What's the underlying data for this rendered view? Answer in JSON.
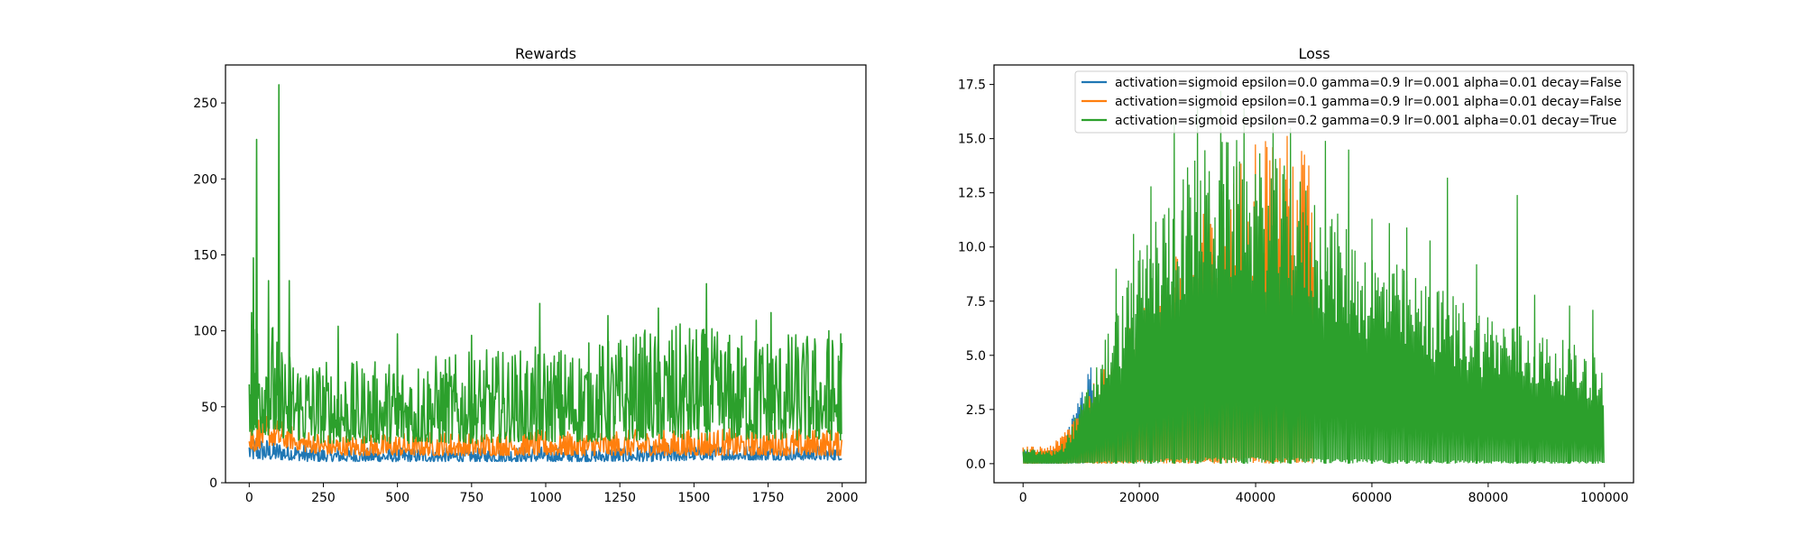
{
  "chart_data": [
    {
      "type": "line",
      "title": "Rewards",
      "xlabel": "",
      "ylabel": "",
      "xlim": [
        -80,
        2080
      ],
      "ylim": [
        0,
        275
      ],
      "xticks": [
        0,
        250,
        500,
        750,
        1000,
        1250,
        1500,
        1750,
        2000
      ],
      "xtick_labels": [
        "0",
        "250",
        "500",
        "750",
        "1000",
        "1250",
        "1500",
        "1750",
        "2000"
      ],
      "yticks": [
        0,
        50,
        100,
        150,
        200,
        250
      ],
      "ytick_labels": [
        "0",
        "50",
        "100",
        "150",
        "200",
        "250"
      ],
      "grid": false,
      "legend": "none",
      "series": [
        {
          "color": "#1f77b4",
          "x": [
            0,
            50,
            100,
            150,
            200,
            250,
            300,
            400,
            500,
            600,
            700,
            800,
            900,
            1000,
            1100,
            1200,
            1300,
            1400,
            1500,
            1600,
            1700,
            1800,
            1900,
            2000
          ],
          "low": [
            15,
            15,
            15,
            15,
            14,
            14,
            14,
            14,
            14,
            14,
            14,
            14,
            14,
            14,
            14,
            14,
            14,
            14,
            15,
            15,
            15,
            15,
            15,
            15
          ],
          "high": [
            32,
            30,
            28,
            27,
            25,
            24,
            24,
            23,
            23,
            23,
            23,
            23,
            24,
            24,
            24,
            24,
            24,
            25,
            25,
            25,
            25,
            25,
            25,
            25
          ]
        },
        {
          "color": "#ff7f0e",
          "x": [
            0,
            50,
            100,
            150,
            200,
            250,
            300,
            400,
            500,
            600,
            700,
            800,
            900,
            1000,
            1100,
            1200,
            1300,
            1400,
            1500,
            1600,
            1700,
            1800,
            1900,
            2000
          ],
          "low": [
            18,
            25,
            24,
            22,
            20,
            19,
            18,
            18,
            18,
            18,
            18,
            18,
            18,
            18,
            18,
            18,
            18,
            18,
            18,
            18,
            18,
            18,
            18,
            18
          ],
          "high": [
            45,
            48,
            42,
            38,
            35,
            33,
            32,
            32,
            33,
            34,
            34,
            34,
            35,
            35,
            35,
            35,
            35,
            35,
            36,
            36,
            36,
            36,
            36,
            36
          ]
        },
        {
          "color": "#2ca02c",
          "x": [
            0,
            50,
            100,
            150,
            200,
            250,
            300,
            400,
            500,
            600,
            700,
            800,
            900,
            1000,
            1100,
            1200,
            1300,
            1400,
            1500,
            1600,
            1700,
            1800,
            1900,
            2000
          ],
          "low": [
            30,
            32,
            30,
            28,
            27,
            26,
            26,
            26,
            26,
            26,
            26,
            26,
            27,
            27,
            27,
            27,
            28,
            28,
            28,
            28,
            28,
            28,
            28,
            28
          ],
          "high": [
            110,
            130,
            95,
            90,
            85,
            82,
            80,
            80,
            82,
            85,
            85,
            88,
            88,
            90,
            92,
            95,
            100,
            105,
            105,
            100,
            100,
            100,
            100,
            98
          ],
          "peaks": [
            [
              8,
              112
            ],
            [
              14,
              148
            ],
            [
              25,
              226
            ],
            [
              65,
              133
            ],
            [
              100,
              262
            ],
            [
              135,
              133
            ],
            [
              300,
              103
            ],
            [
              500,
              98
            ],
            [
              750,
              97
            ],
            [
              980,
              118
            ],
            [
              1210,
              110
            ],
            [
              1380,
              115
            ],
            [
              1542,
              131
            ],
            [
              1710,
              107
            ],
            [
              1760,
              112
            ],
            [
              1955,
              100
            ],
            [
              1995,
              98
            ]
          ]
        }
      ]
    },
    {
      "type": "line",
      "title": "Loss",
      "xlabel": "",
      "ylabel": "",
      "xlim": [
        -5000,
        105000
      ],
      "ylim": [
        -0.88,
        18.4
      ],
      "xticks": [
        0,
        20000,
        40000,
        60000,
        80000,
        100000
      ],
      "xtick_labels": [
        "0",
        "20000",
        "40000",
        "60000",
        "80000",
        "100000"
      ],
      "yticks": [
        0,
        2.5,
        5,
        7.5,
        10,
        12.5,
        15,
        17.5
      ],
      "ytick_labels": [
        "0.0",
        "2.5",
        "5.0",
        "7.5",
        "10.0",
        "12.5",
        "15.0",
        "17.5"
      ],
      "grid": false,
      "legend": "top-right",
      "series": [
        {
          "name": "activation=sigmoid epsilon=0.0 gamma=0.9 lr=0.001 alpha=0.01 decay=False",
          "color": "#1f77b4",
          "x": [
            0,
            2000,
            4000,
            6000,
            7000,
            8000,
            9000,
            10000,
            11000,
            12000
          ],
          "envelope": [
            0.8,
            0.6,
            0.6,
            0.8,
            1.2,
            1.8,
            2.6,
            3.4,
            4.1,
            4.8
          ]
        },
        {
          "name": "activation=sigmoid epsilon=0.1 gamma=0.9 lr=0.001 alpha=0.01 decay=False",
          "color": "#ff7f0e",
          "x": [
            0,
            2000,
            4000,
            6000,
            7000,
            8000,
            40000,
            42000,
            44000,
            46000,
            48000,
            50000
          ],
          "envelope": [
            0.8,
            0.8,
            0.9,
            1.1,
            1.5,
            2.0,
            15.4,
            15.6,
            15.5,
            15.2,
            15.0,
            14.5
          ]
        },
        {
          "name": "activation=sigmoid epsilon=0.2 gamma=0.9 lr=0.001 alpha=0.01 decay=True",
          "color": "#2ca02c",
          "x": [
            0,
            5000,
            7000,
            10000,
            12000,
            14000,
            16000,
            18000,
            20000,
            22000,
            24000,
            26000,
            28000,
            30000,
            32000,
            34000,
            36000,
            38000,
            40000,
            42000,
            44000,
            46000,
            48000,
            50000,
            52000,
            54000,
            56000,
            58000,
            60000,
            62000,
            64000,
            66000,
            68000,
            70000,
            72000,
            74000,
            76000,
            78000,
            80000,
            82000,
            84000,
            86000,
            88000,
            90000,
            92000,
            94000,
            96000,
            98000,
            99000,
            100000
          ],
          "envelope": [
            0.7,
            0.6,
            1.0,
            2.8,
            4.3,
            5.9,
            7.2,
            8.6,
            9.8,
            11.2,
            12.1,
            13.0,
            13.8,
            14.4,
            14.8,
            15.0,
            15.0,
            14.9,
            14.6,
            14.3,
            14.0,
            13.6,
            13.2,
            12.7,
            12.1,
            11.6,
            11.0,
            10.5,
            10.0,
            9.6,
            9.3,
            9.0,
            8.7,
            8.4,
            8.1,
            7.9,
            7.6,
            7.4,
            7.1,
            6.9,
            6.7,
            6.4,
            6.2,
            6.0,
            5.8,
            5.6,
            5.4,
            5.2,
            5.6,
            3.8
          ],
          "peaks": [
            [
              16000,
              9.0
            ],
            [
              19000,
              10.6
            ],
            [
              22000,
              12.8
            ],
            [
              26000,
              15.8
            ],
            [
              30000,
              16.5
            ],
            [
              34000,
              17.2
            ],
            [
              38000,
              16.4
            ],
            [
              43000,
              16.0
            ],
            [
              46000,
              15.5
            ],
            [
              52000,
              14.9
            ],
            [
              56000,
              14.5
            ],
            [
              60000,
              11.3
            ],
            [
              63000,
              11.1
            ],
            [
              66000,
              10.9
            ],
            [
              70000,
              10.3
            ],
            [
              73000,
              13.2
            ],
            [
              78000,
              9.2
            ],
            [
              85000,
              12.4
            ],
            [
              88000,
              7.8
            ],
            [
              94000,
              7.3
            ],
            [
              98000,
              7.1
            ]
          ]
        }
      ]
    }
  ]
}
